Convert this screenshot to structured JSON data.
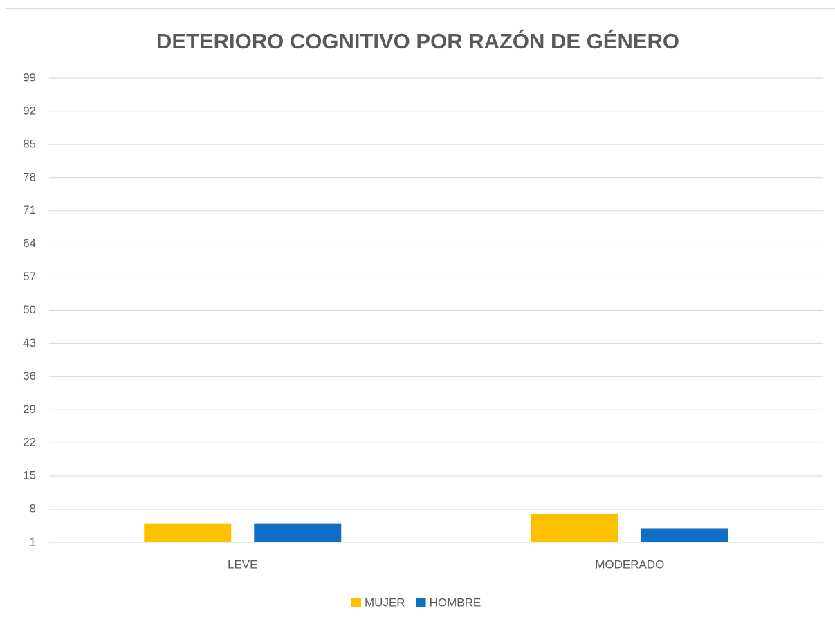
{
  "chart_data": {
    "type": "bar",
    "title": "DETERIORO COGNITIVO POR RAZÓN DE GÉNERO",
    "categories": [
      "LEVE",
      "MODERADO"
    ],
    "series": [
      {
        "name": "MUJER",
        "color": "#ffc000",
        "values": [
          5,
          7
        ]
      },
      {
        "name": "HOMBRE",
        "color": "#0f6fc6",
        "values": [
          5,
          4
        ]
      }
    ],
    "ylim": [
      1,
      99
    ],
    "yticks": [
      1,
      8,
      15,
      22,
      29,
      36,
      43,
      50,
      57,
      64,
      71,
      78,
      85,
      92,
      99
    ],
    "grid": true,
    "legend": "bottom"
  }
}
